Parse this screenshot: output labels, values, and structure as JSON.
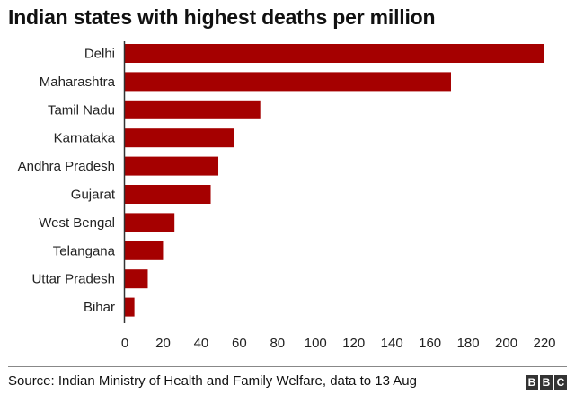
{
  "title": "Indian states with highest deaths per million",
  "source": "Source: Indian Ministry of Health and Family Welfare, data to 13 Aug",
  "logo": {
    "letters": [
      "B",
      "B",
      "C"
    ]
  },
  "colors": {
    "bar": "#a50000",
    "axis": "#333333",
    "text": "#222222"
  },
  "chart_data": {
    "type": "bar",
    "orientation": "horizontal",
    "title": "Indian states with highest deaths per million",
    "categories": [
      "Delhi",
      "Maharashtra",
      "Tamil Nadu",
      "Karnataka",
      "Andhra Pradesh",
      "Gujarat",
      "West Bengal",
      "Telangana",
      "Uttar Pradesh",
      "Bihar"
    ],
    "values": [
      220,
      171,
      71,
      57,
      49,
      45,
      26,
      20,
      12,
      5
    ],
    "xlim": [
      0,
      220
    ],
    "xticks": [
      0,
      20,
      40,
      60,
      80,
      100,
      120,
      140,
      160,
      180,
      200,
      220
    ],
    "grid": false,
    "legend": "none"
  }
}
